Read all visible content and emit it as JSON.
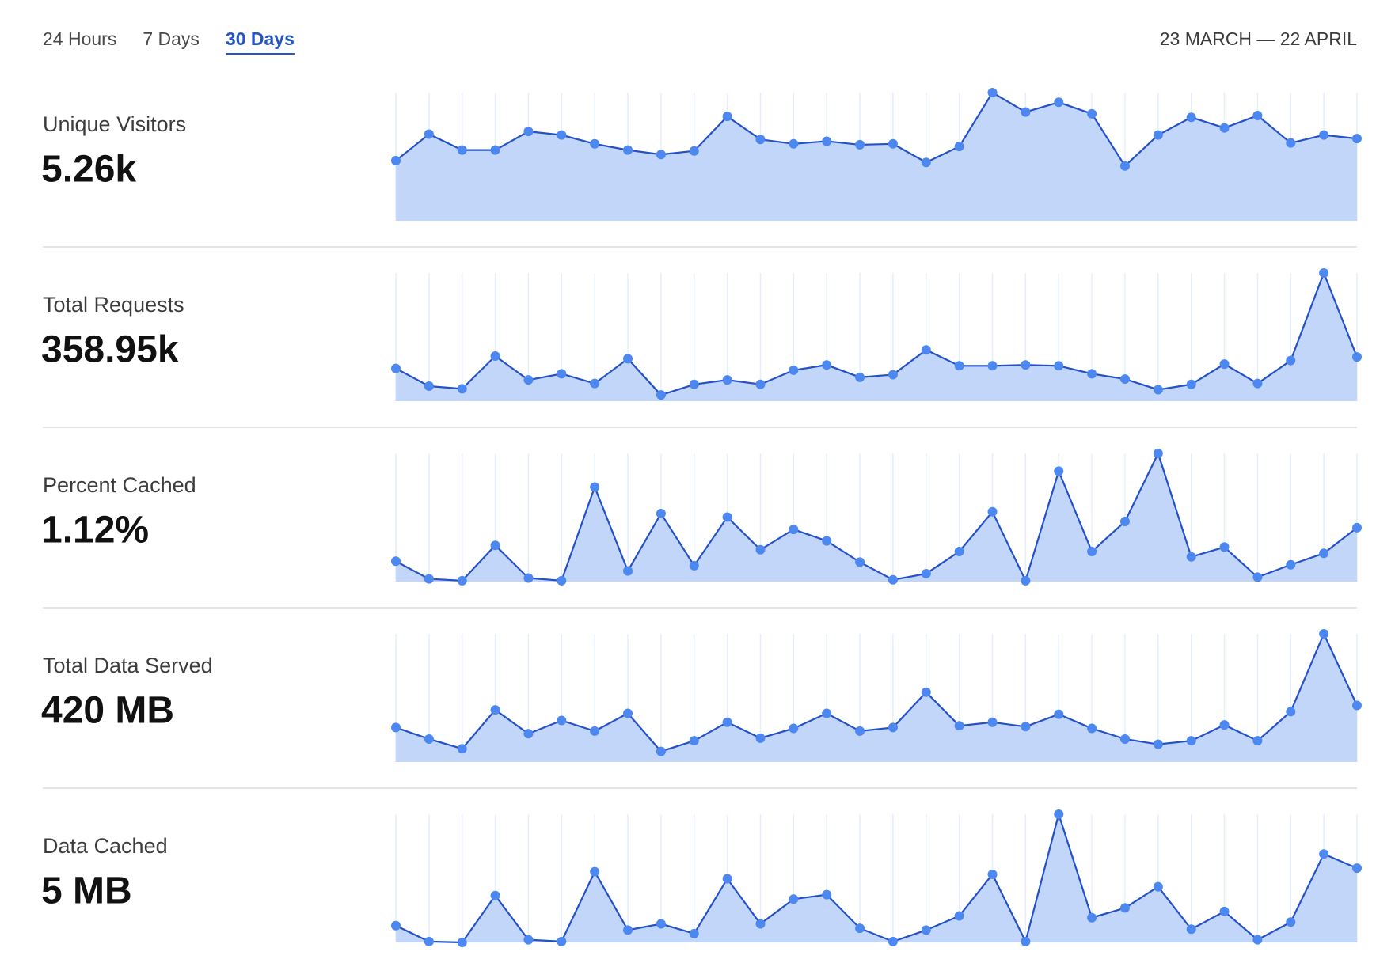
{
  "tabs": [
    "24 Hours",
    "7 Days",
    "30 Days"
  ],
  "active_tab": 2,
  "date_range": "23 MARCH — 22 APRIL",
  "chart_data": [
    {
      "type": "area",
      "title": "Unique Visitors",
      "total": "5.26k",
      "color": "#4d87f0",
      "values": [
        68,
        98,
        80,
        80,
        101,
        97,
        87,
        80,
        75,
        79,
        118,
        92,
        87,
        90,
        86,
        87,
        66,
        84,
        145,
        123,
        134,
        121,
        62,
        97,
        117,
        105,
        119,
        88,
        97,
        93
      ]
    },
    {
      "type": "area",
      "title": "Total Requests",
      "total": "358.95k",
      "color": "#4d87f0",
      "values": [
        37,
        17,
        14,
        51,
        24,
        31,
        20,
        48,
        7,
        19,
        24,
        19,
        35,
        41,
        27,
        30,
        58,
        40,
        40,
        41,
        40,
        31,
        25,
        13,
        19,
        42,
        20,
        46,
        145,
        50
      ]
    },
    {
      "type": "area",
      "title": "Percent Cached",
      "total": "1.12%",
      "color": "#4d87f0",
      "values": [
        23,
        3,
        1,
        41,
        4,
        1,
        107,
        12,
        77,
        18,
        73,
        36,
        59,
        46,
        22,
        2,
        9,
        34,
        79,
        1,
        125,
        34,
        68,
        145,
        28,
        39,
        5,
        19,
        32,
        61
      ]
    },
    {
      "type": "area",
      "title": "Total Data Served",
      "total": "420 MB",
      "color": "#4d87f0",
      "values": [
        39,
        26,
        15,
        59,
        32,
        47,
        35,
        55,
        12,
        24,
        45,
        27,
        38,
        55,
        35,
        39,
        79,
        41,
        45,
        40,
        54,
        38,
        26,
        20,
        24,
        42,
        24,
        57,
        145,
        64
      ]
    },
    {
      "type": "area",
      "title": "Data Cached",
      "total": "5 MB",
      "color": "#4d87f0",
      "values": [
        19,
        1,
        0,
        53,
        3,
        1,
        80,
        14,
        21,
        10,
        72,
        21,
        49,
        54,
        16,
        1,
        14,
        30,
        77,
        1,
        145,
        28,
        39,
        63,
        15,
        35,
        3,
        23,
        100,
        84
      ]
    }
  ]
}
